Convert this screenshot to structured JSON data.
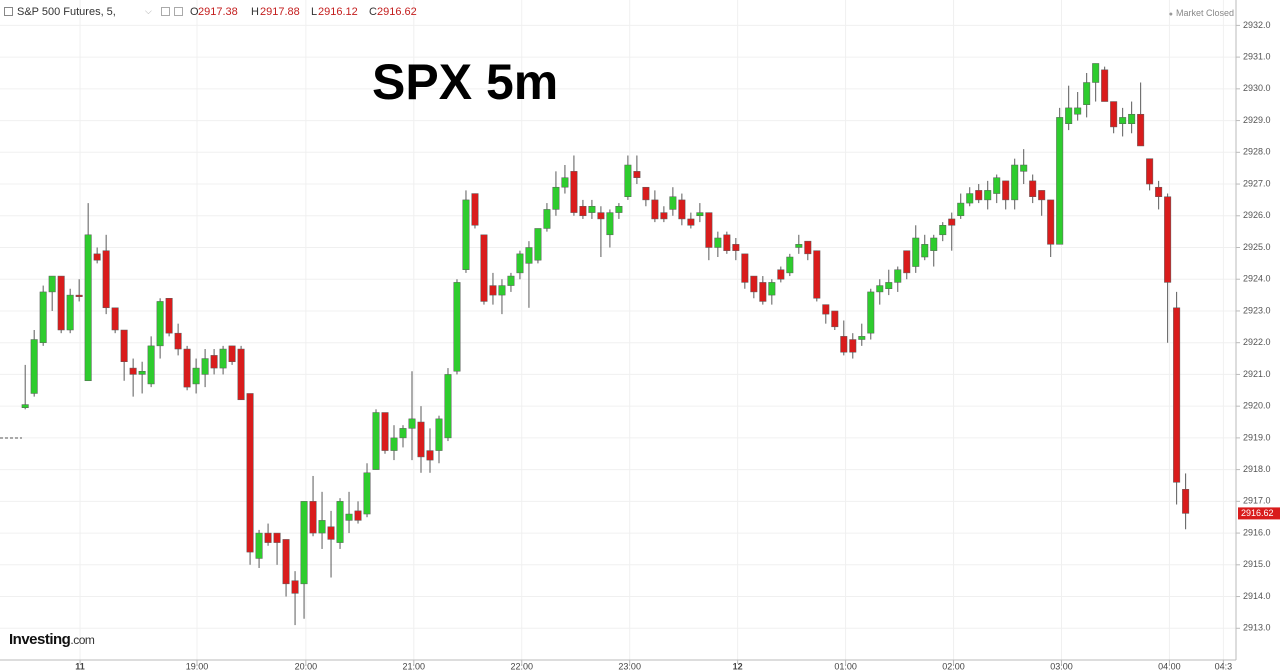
{
  "header": {
    "symbol": "S&P 500 Futures, 5,",
    "ohlc_labels": [
      "O",
      "H",
      "L",
      "C"
    ],
    "status": "Market Closed"
  },
  "logo": {
    "brand": "Investing",
    "domain": ".com"
  },
  "chart_data": {
    "type": "candlestick",
    "title": "SPX 5m",
    "up_color": "#2ecc2e",
    "down_color": "#d91c1c",
    "wick_color": "#5a5a5a",
    "grid": true,
    "open": [
      2919.95,
      2920.4,
      2922.0,
      2923.6,
      2924.1,
      2922.4,
      2923.5,
      2920.8,
      2924.8,
      2924.9,
      2923.1,
      2922.4,
      2921.2,
      2921.0,
      2920.7,
      2921.9,
      2923.4,
      2922.3,
      2921.8,
      2920.7,
      2921.0,
      2921.6,
      2921.2,
      2921.9,
      2921.8,
      2920.4,
      2915.2,
      2916.0,
      2916.0,
      2915.8,
      2914.5,
      2914.4,
      2917.0,
      2916.0,
      2916.2,
      2915.7,
      2916.4,
      2916.7,
      2916.6,
      2918.0,
      2919.8,
      2918.6,
      2919.0,
      2919.3,
      2919.5,
      2918.6,
      2918.6,
      2919.0,
      2921.1,
      2924.3,
      2926.7,
      2925.4,
      2923.8,
      2923.5,
      2923.8,
      2924.2,
      2924.5,
      2924.6,
      2925.6,
      2926.2,
      2926.9,
      2927.4,
      2926.3,
      2926.1,
      2926.1,
      2925.4,
      2926.1,
      2926.6,
      2927.4,
      2926.9,
      2926.5,
      2926.1,
      2926.2,
      2926.5,
      2925.9,
      2926.0,
      2926.1,
      2925.0,
      2925.4,
      2925.1,
      2924.8,
      2924.1,
      2923.9,
      2923.5,
      2924.3,
      2924.2,
      2925.0,
      2925.2,
      2924.9,
      2923.2,
      2923.0,
      2922.2,
      2922.1,
      2922.1,
      2922.3,
      2923.6,
      2923.7,
      2923.9,
      2924.9,
      2924.4,
      2924.7,
      2924.9,
      2925.4,
      2925.9,
      2926.0,
      2926.4,
      2926.8,
      2926.5,
      2926.7,
      2927.1,
      2926.5,
      2927.4,
      2927.1,
      2926.8,
      2926.5,
      2925.1,
      2928.9,
      2929.2,
      2929.5,
      2930.2,
      2930.6,
      2929.6,
      2928.9,
      2928.9,
      2929.2,
      2927.8,
      2926.9,
      2926.6,
      2923.1,
      2917.38
    ],
    "high": [
      2921.3,
      2922.4,
      2923.8,
      2924.1,
      2924.1,
      2923.7,
      2924.0,
      2926.4,
      2925.0,
      2925.4,
      2923.1,
      2922.4,
      2921.5,
      2921.4,
      2922.2,
      2923.4,
      2923.4,
      2922.6,
      2921.9,
      2921.5,
      2921.8,
      2921.8,
      2921.9,
      2921.9,
      2921.9,
      2920.4,
      2916.1,
      2916.3,
      2916.0,
      2915.8,
      2914.8,
      2917.0,
      2917.8,
      2917.3,
      2916.7,
      2917.1,
      2917.3,
      2917.0,
      2918.2,
      2919.9,
      2919.8,
      2919.4,
      2919.4,
      2921.1,
      2920.0,
      2919.3,
      2919.7,
      2921.2,
      2924.0,
      2926.8,
      2926.7,
      2925.4,
      2924.2,
      2924.0,
      2924.2,
      2924.9,
      2925.2,
      2925.6,
      2926.4,
      2927.4,
      2927.6,
      2927.9,
      2926.5,
      2926.5,
      2926.3,
      2926.2,
      2926.4,
      2927.9,
      2927.9,
      2926.9,
      2926.8,
      2926.3,
      2926.9,
      2926.7,
      2926.1,
      2926.4,
      2926.1,
      2925.5,
      2925.5,
      2925.3,
      2924.8,
      2924.1,
      2924.1,
      2924.0,
      2924.4,
      2924.8,
      2925.4,
      2925.2,
      2924.9,
      2923.2,
      2923.0,
      2922.7,
      2922.3,
      2922.6,
      2923.7,
      2924.0,
      2924.3,
      2924.4,
      2924.9,
      2925.7,
      2925.4,
      2925.4,
      2925.8,
      2926.1,
      2926.7,
      2926.9,
      2927.0,
      2927.1,
      2927.3,
      2927.1,
      2927.8,
      2928.1,
      2927.3,
      2926.8,
      2926.5,
      2929.4,
      2930.1,
      2929.9,
      2930.5,
      2930.8,
      2930.7,
      2929.6,
      2929.4,
      2929.6,
      2930.2,
      2927.8,
      2927.1,
      2926.7,
      2923.6,
      2917.88
    ],
    "low": [
      2919.9,
      2920.3,
      2921.9,
      2923.0,
      2922.3,
      2922.3,
      2923.3,
      2920.8,
      2924.5,
      2922.9,
      2922.3,
      2920.8,
      2920.3,
      2920.4,
      2920.6,
      2921.5,
      2922.2,
      2921.6,
      2920.5,
      2920.4,
      2920.6,
      2921.0,
      2921.0,
      2921.3,
      2920.2,
      2915.0,
      2914.9,
      2915.6,
      2915.0,
      2914.0,
      2913.1,
      2913.3,
      2915.9,
      2915.5,
      2914.6,
      2915.5,
      2916.0,
      2916.3,
      2916.5,
      2918.0,
      2918.5,
      2918.3,
      2918.7,
      2918.3,
      2917.9,
      2917.9,
      2918.2,
      2918.9,
      2921.0,
      2924.2,
      2925.6,
      2923.2,
      2923.2,
      2922.9,
      2923.6,
      2924.0,
      2923.1,
      2924.5,
      2925.5,
      2926.0,
      2926.7,
      2926.0,
      2925.9,
      2925.9,
      2924.7,
      2925.0,
      2925.9,
      2926.5,
      2927.0,
      2926.3,
      2925.8,
      2925.8,
      2926.0,
      2925.7,
      2925.6,
      2925.8,
      2924.6,
      2924.7,
      2924.8,
      2924.6,
      2923.7,
      2923.4,
      2923.2,
      2923.2,
      2923.9,
      2924.1,
      2924.8,
      2924.6,
      2923.3,
      2922.6,
      2922.4,
      2921.6,
      2921.5,
      2921.9,
      2922.1,
      2923.2,
      2923.5,
      2923.6,
      2924.0,
      2924.2,
      2924.6,
      2924.4,
      2925.2,
      2924.9,
      2925.9,
      2926.3,
      2926.4,
      2926.2,
      2926.4,
      2926.2,
      2926.2,
      2927.0,
      2926.4,
      2926.0,
      2924.7,
      2925.1,
      2928.7,
      2929.0,
      2929.1,
      2929.6,
      2929.6,
      2928.6,
      2928.5,
      2928.6,
      2928.2,
      2926.8,
      2926.2,
      2922.0,
      2916.9,
      2916.12
    ],
    "close": [
      2920.05,
      2922.1,
      2923.6,
      2924.1,
      2922.4,
      2923.5,
      2923.45,
      2925.4,
      2924.6,
      2923.1,
      2922.4,
      2921.4,
      2921.0,
      2921.1,
      2921.9,
      2923.3,
      2922.3,
      2921.8,
      2920.6,
      2921.2,
      2921.5,
      2921.2,
      2921.8,
      2921.4,
      2920.2,
      2915.4,
      2916.0,
      2915.7,
      2915.7,
      2914.4,
      2914.1,
      2917.0,
      2916.0,
      2916.4,
      2915.8,
      2917.0,
      2916.6,
      2916.4,
      2917.9,
      2919.8,
      2918.6,
      2919.0,
      2919.3,
      2919.6,
      2918.4,
      2918.3,
      2919.6,
      2921.0,
      2923.9,
      2926.5,
      2925.7,
      2923.3,
      2923.5,
      2923.8,
      2924.1,
      2924.8,
      2925.0,
      2925.6,
      2926.2,
      2926.9,
      2927.2,
      2926.1,
      2926.0,
      2926.3,
      2925.9,
      2926.1,
      2926.3,
      2927.6,
      2927.2,
      2926.5,
      2925.9,
      2925.9,
      2926.6,
      2925.9,
      2925.7,
      2926.1,
      2925.0,
      2925.3,
      2924.9,
      2924.9,
      2923.9,
      2923.6,
      2923.3,
      2923.9,
      2924.0,
      2924.7,
      2925.1,
      2924.8,
      2923.4,
      2922.9,
      2922.5,
      2921.7,
      2921.7,
      2922.2,
      2923.6,
      2923.8,
      2923.9,
      2924.3,
      2924.2,
      2925.3,
      2925.1,
      2925.3,
      2925.7,
      2925.7,
      2926.4,
      2926.7,
      2926.5,
      2926.8,
      2927.2,
      2926.5,
      2927.6,
      2927.6,
      2926.6,
      2926.5,
      2925.1,
      2929.1,
      2929.4,
      2929.4,
      2930.2,
      2930.8,
      2929.6,
      2928.8,
      2929.1,
      2929.2,
      2928.2,
      2927.0,
      2926.6,
      2923.9,
      2917.6,
      2916.62
    ],
    "xlim": [
      -2.8,
      134.6
    ],
    "xticks": [
      {
        "value": 6.1,
        "label": "11"
      },
      {
        "value": 19.1,
        "label": "19:00"
      },
      {
        "value": 31.2,
        "label": "20:00"
      },
      {
        "value": 43.2,
        "label": "21:00"
      },
      {
        "value": 55.2,
        "label": "22:00"
      },
      {
        "value": 67.2,
        "label": "23:00"
      },
      {
        "value": 79.2,
        "label": "12"
      },
      {
        "value": 91.2,
        "label": "01:00"
      },
      {
        "value": 103.2,
        "label": "02:00"
      },
      {
        "value": 115.2,
        "label": "03:00"
      },
      {
        "value": 127.2,
        "label": "04:00"
      },
      {
        "value": 133.2,
        "label": "04:3"
      }
    ],
    "ylim": [
      2912,
      2932.8
    ],
    "yticks": [
      {
        "value": 2913,
        "label": "2913.0"
      },
      {
        "value": 2914,
        "label": "2914.0"
      },
      {
        "value": 2915,
        "label": "2915.0"
      },
      {
        "value": 2916,
        "label": "2916.0"
      },
      {
        "value": 2917,
        "label": "2917.0"
      },
      {
        "value": 2918,
        "label": "2918.0"
      },
      {
        "value": 2919,
        "label": "2919.0"
      },
      {
        "value": 2920,
        "label": "2920.0"
      },
      {
        "value": 2921,
        "label": "2921.0"
      },
      {
        "value": 2922,
        "label": "2922.0"
      },
      {
        "value": 2923,
        "label": "2923.0"
      },
      {
        "value": 2924,
        "label": "2924.0"
      },
      {
        "value": 2925,
        "label": "2925.0"
      },
      {
        "value": 2926,
        "label": "2926.0"
      },
      {
        "value": 2927,
        "label": "2927.0"
      },
      {
        "value": 2928,
        "label": "2928.0"
      },
      {
        "value": 2929,
        "label": "2929.0"
      },
      {
        "value": 2930,
        "label": "2930.0"
      },
      {
        "value": 2931,
        "label": "2931.0"
      },
      {
        "value": 2932,
        "label": "2932.0"
      }
    ]
  }
}
